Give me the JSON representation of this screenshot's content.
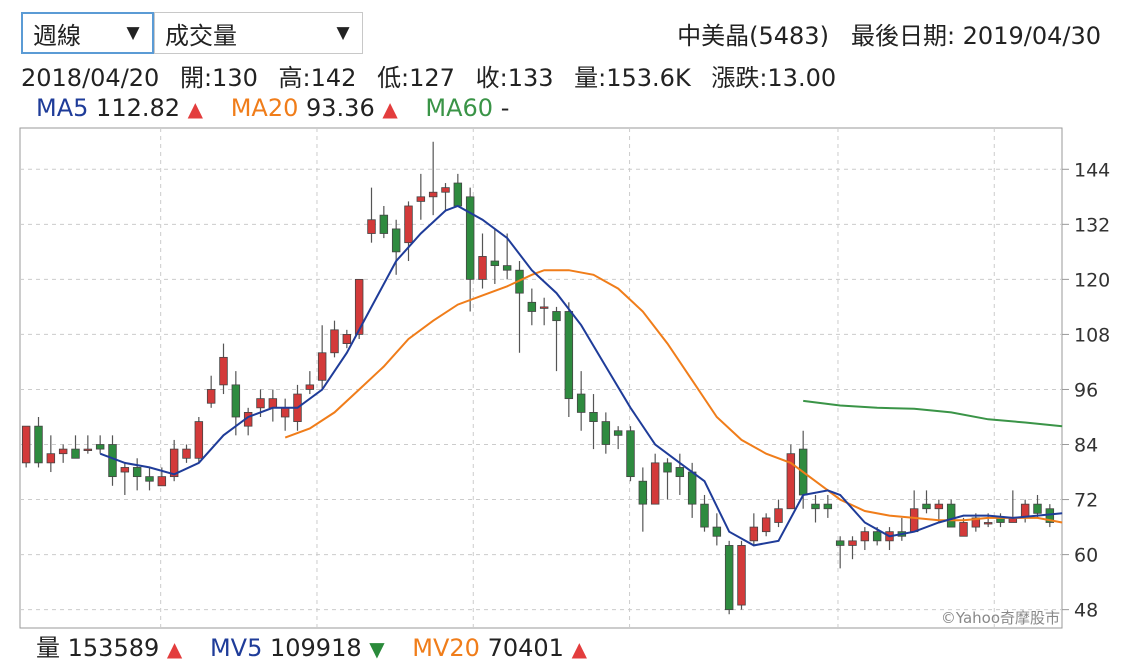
{
  "controls": {
    "period": "週線",
    "indicator": "成交量"
  },
  "header": {
    "stock": "中美晶(5483)",
    "last_date": "最後日期: 2019/04/30"
  },
  "info": {
    "date": "2018/04/20",
    "open": "開:130",
    "high": "高:142",
    "low": "低:127",
    "close": "收:133",
    "volume": "量:153.6K",
    "change": "漲跌:13.00"
  },
  "ma": {
    "ma5_label": "MA5",
    "ma5_value": "112.82",
    "ma5_trend": "▲",
    "ma20_label": "MA20",
    "ma20_value": "93.36",
    "ma20_trend": "▲",
    "ma60_label": "MA60",
    "ma60_value": "-"
  },
  "volume_row": {
    "vol_label": "量",
    "vol_value": "153589",
    "vol_trend": "▲",
    "mv5_label": "MV5",
    "mv5_value": "109918",
    "mv5_trend": "▼",
    "mv20_label": "MV20",
    "mv20_value": "70401",
    "mv20_trend": "▲"
  },
  "watermark": "©Yahoo奇摩股市",
  "colors": {
    "up": "#d33a3a",
    "down": "#2e8b3f",
    "ma5": "#1f3c99",
    "ma20": "#f07d1a",
    "ma60": "#3a9447",
    "grid": "#cccccc",
    "axis": "#999999"
  },
  "chart_data": {
    "type": "candlestick",
    "ylim": [
      44,
      153
    ],
    "yticks": [
      48,
      60,
      72,
      84,
      96,
      108,
      120,
      132,
      144
    ],
    "candles": [
      [
        80,
        88,
        79,
        88
      ],
      [
        88,
        90,
        79,
        80
      ],
      [
        80,
        86,
        78,
        82
      ],
      [
        82,
        84,
        80,
        83
      ],
      [
        83,
        86,
        81,
        81
      ],
      [
        83,
        86,
        82,
        83
      ],
      [
        84,
        86,
        82,
        83
      ],
      [
        84,
        86,
        75,
        77
      ],
      [
        78,
        80,
        73,
        79
      ],
      [
        79,
        81,
        74,
        77
      ],
      [
        77,
        79,
        74,
        76
      ],
      [
        75,
        79,
        75,
        77
      ],
      [
        77,
        85,
        76,
        83
      ],
      [
        81,
        84,
        80,
        83
      ],
      [
        81,
        90,
        80,
        89
      ],
      [
        93,
        99,
        92,
        96
      ],
      [
        97,
        106,
        95,
        103
      ],
      [
        97,
        100,
        86,
        90
      ],
      [
        88,
        92,
        86,
        91
      ],
      [
        92,
        96,
        90,
        94
      ],
      [
        92,
        96,
        89,
        94
      ],
      [
        90,
        94,
        87,
        92
      ],
      [
        89,
        97,
        87,
        95
      ],
      [
        96,
        100,
        95,
        97
      ],
      [
        98,
        110,
        96,
        104
      ],
      [
        104,
        111,
        103,
        109
      ],
      [
        106,
        109,
        105,
        108
      ],
      [
        108,
        120,
        107,
        120
      ],
      [
        130,
        140,
        128,
        133
      ],
      [
        134,
        136,
        129,
        130
      ],
      [
        131,
        133,
        121,
        126
      ],
      [
        128,
        137,
        124,
        136
      ],
      [
        137,
        143,
        133,
        138
      ],
      [
        138,
        150,
        134,
        139
      ],
      [
        139,
        141,
        135,
        140
      ],
      [
        141,
        143,
        136,
        136
      ],
      [
        138,
        140,
        113,
        120
      ],
      [
        120,
        130,
        118,
        125
      ],
      [
        124,
        131,
        119,
        123
      ],
      [
        123,
        130,
        120,
        122
      ],
      [
        122,
        124,
        104,
        117
      ],
      [
        115,
        118,
        110,
        113
      ],
      [
        114,
        116,
        110,
        114
      ],
      [
        113,
        114,
        100,
        111
      ],
      [
        113,
        115,
        90,
        94
      ],
      [
        95,
        100,
        87,
        91
      ],
      [
        91,
        95,
        83,
        89
      ],
      [
        89,
        91,
        82,
        84
      ],
      [
        87,
        88,
        83,
        86
      ],
      [
        87,
        88,
        76,
        77
      ],
      [
        76,
        79,
        65,
        71
      ],
      [
        71,
        82,
        71,
        80
      ],
      [
        80,
        81,
        72,
        78
      ],
      [
        79,
        82,
        73,
        77
      ],
      [
        78,
        80,
        68,
        71
      ],
      [
        71,
        73,
        65,
        66
      ],
      [
        66,
        69,
        62,
        64
      ],
      [
        62,
        63,
        47,
        48
      ],
      [
        49,
        63,
        48,
        62
      ],
      [
        63,
        69,
        62,
        66
      ],
      [
        65,
        69,
        64,
        68
      ],
      [
        67,
        72,
        66,
        70
      ],
      [
        70,
        84,
        70,
        82
      ],
      [
        83,
        87,
        70,
        73
      ],
      [
        71,
        73,
        67,
        70
      ],
      [
        71,
        73,
        68,
        70
      ],
      [
        63,
        64,
        57,
        62
      ],
      [
        62,
        64,
        59,
        63
      ],
      [
        63,
        66,
        61,
        65
      ],
      [
        65,
        66,
        62,
        63
      ],
      [
        63,
        66,
        61,
        65
      ],
      [
        65,
        68,
        63,
        64
      ],
      [
        65,
        74,
        65,
        70
      ],
      [
        71,
        74,
        69,
        70
      ],
      [
        70,
        72,
        67,
        71
      ],
      [
        71,
        72,
        66,
        66
      ],
      [
        64,
        68,
        64,
        67
      ],
      [
        66,
        69,
        65,
        68
      ],
      [
        67,
        69,
        66,
        67
      ],
      [
        68,
        69,
        66,
        67
      ],
      [
        67,
        74,
        67,
        68
      ],
      [
        68,
        72,
        67,
        71
      ],
      [
        71,
        73,
        68,
        69
      ],
      [
        70,
        71,
        66,
        67
      ]
    ],
    "ma5": [
      [
        6,
        82
      ],
      [
        8,
        80
      ],
      [
        10,
        79
      ],
      [
        12,
        77.5
      ],
      [
        14,
        80
      ],
      [
        16,
        86
      ],
      [
        18,
        90
      ],
      [
        20,
        92
      ],
      [
        22,
        92
      ],
      [
        24,
        96
      ],
      [
        26,
        104
      ],
      [
        28,
        114
      ],
      [
        30,
        124
      ],
      [
        32,
        130
      ],
      [
        34,
        135
      ],
      [
        35,
        136
      ],
      [
        37,
        133
      ],
      [
        39,
        129
      ],
      [
        41,
        122
      ],
      [
        43,
        117
      ],
      [
        45,
        110
      ],
      [
        47,
        101
      ],
      [
        49,
        92
      ],
      [
        51,
        84
      ],
      [
        53,
        80
      ],
      [
        55,
        76
      ],
      [
        57,
        65
      ],
      [
        59,
        62
      ],
      [
        61,
        63
      ],
      [
        63,
        73
      ],
      [
        65,
        74
      ],
      [
        66,
        73
      ],
      [
        68,
        67
      ],
      [
        70,
        64
      ],
      [
        72,
        65
      ],
      [
        74,
        67
      ],
      [
        76,
        68.5
      ],
      [
        78,
        68.5
      ],
      [
        80,
        68
      ],
      [
        82,
        68.5
      ],
      [
        84,
        69
      ]
    ],
    "ma20": [
      [
        21,
        85.5
      ],
      [
        23,
        87.5
      ],
      [
        25,
        91
      ],
      [
        27,
        96
      ],
      [
        29,
        101
      ],
      [
        31,
        107
      ],
      [
        33,
        111
      ],
      [
        35,
        114.5
      ],
      [
        37,
        116.5
      ],
      [
        39,
        118.5
      ],
      [
        41,
        121
      ],
      [
        42,
        122
      ],
      [
        44,
        122
      ],
      [
        46,
        121
      ],
      [
        48,
        118
      ],
      [
        50,
        113
      ],
      [
        52,
        106
      ],
      [
        54,
        98
      ],
      [
        56,
        90
      ],
      [
        58,
        85
      ],
      [
        60,
        82
      ],
      [
        62,
        80
      ],
      [
        64,
        76
      ],
      [
        66,
        72
      ],
      [
        68,
        69.5
      ],
      [
        70,
        68.5
      ],
      [
        72,
        68
      ],
      [
        74,
        67.5
      ],
      [
        76,
        67.5
      ],
      [
        78,
        68
      ],
      [
        80,
        68
      ],
      [
        82,
        68
      ],
      [
        84,
        67
      ]
    ],
    "ma60": [
      [
        63,
        93.5
      ],
      [
        66,
        92.5
      ],
      [
        69,
        92
      ],
      [
        72,
        91.8
      ],
      [
        75,
        91
      ],
      [
        78,
        89.5
      ],
      [
        81,
        88.8
      ],
      [
        84,
        88
      ]
    ]
  }
}
